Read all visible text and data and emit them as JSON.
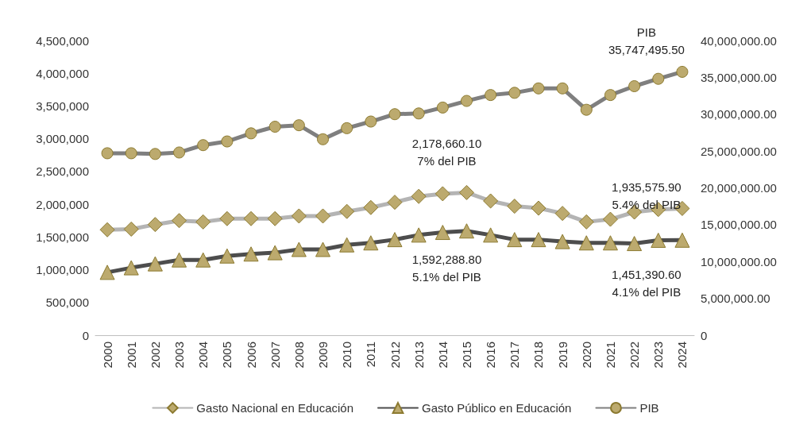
{
  "chart_data": {
    "type": "line",
    "categories": [
      "2000",
      "2001",
      "2002",
      "2003",
      "2004",
      "2005",
      "2006",
      "2007",
      "2008",
      "2009",
      "2010",
      "2011",
      "2012",
      "2013",
      "2014",
      "2015",
      "2016",
      "2017",
      "2018",
      "2019",
      "2020",
      "2021",
      "2022",
      "2023",
      "2024"
    ],
    "series": [
      {
        "name": "Gasto Nacional en Educación",
        "color": "#b4b4b4",
        "marker": "diamond",
        "values": [
          1610000,
          1620000,
          1690000,
          1750000,
          1730000,
          1780000,
          1780000,
          1780000,
          1820000,
          1820000,
          1890000,
          1950000,
          2030000,
          2120000,
          2160000,
          2178660.1,
          2050000,
          1970000,
          1940000,
          1860000,
          1730000,
          1770000,
          1880000,
          1920000,
          1935575.9
        ],
        "value_labels": [
          null,
          null,
          null,
          null,
          null,
          null,
          null,
          null,
          null,
          null,
          null,
          null,
          null,
          null,
          null,
          "2,178,660.10\n7% del PIB",
          null,
          null,
          null,
          null,
          null,
          null,
          null,
          null,
          "1,935,575.90\n5.4% del PIB"
        ]
      },
      {
        "name": "Gasto Público en Educación",
        "color": "#4d4d4d",
        "marker": "triangle",
        "values": [
          960000,
          1030000,
          1090000,
          1150000,
          1150000,
          1210000,
          1240000,
          1260000,
          1310000,
          1310000,
          1380000,
          1410000,
          1460000,
          1530000,
          1570000,
          1592288.8,
          1530000,
          1460000,
          1460000,
          1430000,
          1410000,
          1410000,
          1400000,
          1450000,
          1451390.6
        ],
        "value_labels": [
          null,
          null,
          null,
          null,
          null,
          null,
          null,
          null,
          null,
          null,
          null,
          null,
          null,
          null,
          null,
          "1,592,288.80\n5.1% del PIB",
          null,
          null,
          null,
          null,
          null,
          null,
          null,
          null,
          "1,451,390.60\n4.1% del PIB"
        ]
      },
      {
        "name": "PIB",
        "color": "#7f7f7f",
        "marker": "circle",
        "axis": "y2",
        "values": [
          24700000,
          24700000,
          24600000,
          24800000,
          25800000,
          26300000,
          27400000,
          28300000,
          28500000,
          26600000,
          28100000,
          29000000,
          30000000,
          30100000,
          30900000,
          31800000,
          32600000,
          32900000,
          33500000,
          33500000,
          30600000,
          32600000,
          33800000,
          34800000,
          35747495.5
        ],
        "value_labels": [
          null,
          null,
          null,
          null,
          null,
          null,
          null,
          null,
          null,
          null,
          null,
          null,
          null,
          null,
          null,
          null,
          null,
          null,
          null,
          null,
          null,
          null,
          null,
          null,
          "PIB\n35,747,495.50"
        ]
      }
    ],
    "ylim": [
      0,
      4500000
    ],
    "yticks": [
      0,
      {
        "value": 500000,
        "label": "500,000"
      },
      {
        "value": 1000000,
        "label": "1,000,000"
      },
      {
        "value": 1500000,
        "label": "1,500,000"
      },
      {
        "value": 2000000,
        "label": "2,000,000"
      },
      {
        "value": 2500000,
        "label": "2,500,000"
      },
      {
        "value": 3000000,
        "label": "3,000,000"
      },
      {
        "value": 3500000,
        "label": "3,500,000"
      },
      {
        "value": 4000000,
        "label": "4,000,000"
      },
      {
        "value": 4500000,
        "label": "4,500,000"
      }
    ],
    "y2lim": [
      0,
      40000000
    ],
    "y2ticks": [
      0,
      {
        "value": 5000000,
        "label": "5,000,000.00"
      },
      {
        "value": 10000000,
        "label": "10,000,000.00"
      },
      {
        "value": 15000000,
        "label": "15,000,000.00"
      },
      {
        "value": 20000000,
        "label": "20,000,000.00"
      },
      {
        "value": 25000000,
        "label": "25,000,000.00"
      },
      {
        "value": 30000000,
        "label": "30,000,000.00"
      },
      {
        "value": 35000000,
        "label": "35,000,000.00"
      },
      {
        "value": 40000000,
        "label": "40,000,000.00"
      }
    ],
    "grid": false,
    "legend": "bottom"
  }
}
